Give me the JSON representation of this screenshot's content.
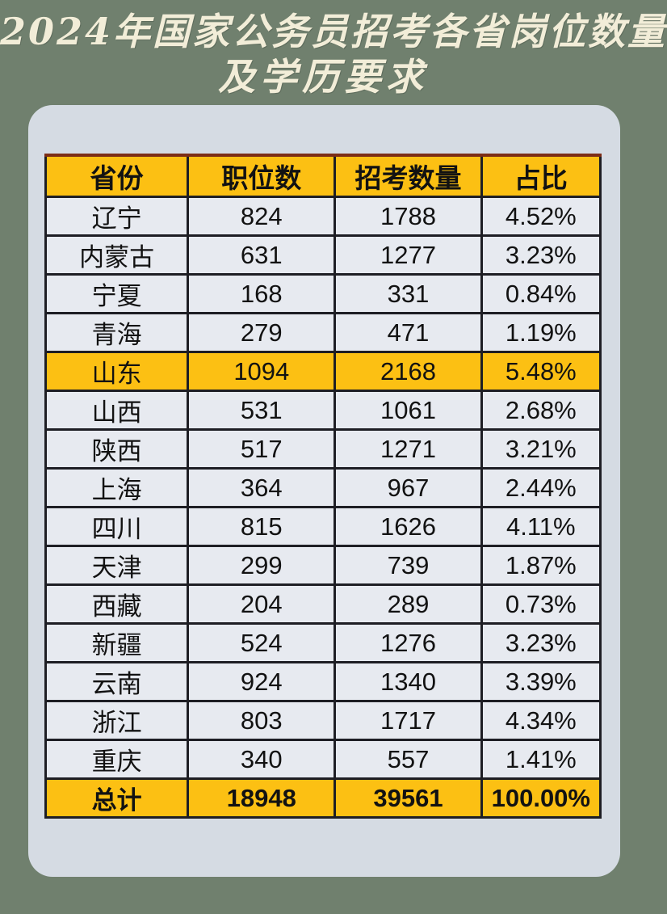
{
  "title": {
    "line1": "2024年国家公务员招考各省岗位数量",
    "line2": "及学历要求"
  },
  "colors": {
    "page_bg": "#70806e",
    "card_bg": "#d5dbe3",
    "accent_yellow": "#fcc013",
    "row_bg": "#e7eaf0",
    "border_color": "#1e1e24",
    "top_border_color": "#7c2d16",
    "title_color": "#f2edd8"
  },
  "table": {
    "header": [
      "省份",
      "职位数",
      "招考数量",
      "占比"
    ],
    "rows": [
      {
        "province": "辽宁",
        "positions": "824",
        "recruits": "1788",
        "share": "4.52%",
        "highlight": false
      },
      {
        "province": "内蒙古",
        "positions": "631",
        "recruits": "1277",
        "share": "3.23%",
        "highlight": false
      },
      {
        "province": "宁夏",
        "positions": "168",
        "recruits": "331",
        "share": "0.84%",
        "highlight": false
      },
      {
        "province": "青海",
        "positions": "279",
        "recruits": "471",
        "share": "1.19%",
        "highlight": false
      },
      {
        "province": "山东",
        "positions": "1094",
        "recruits": "2168",
        "share": "5.48%",
        "highlight": true
      },
      {
        "province": "山西",
        "positions": "531",
        "recruits": "1061",
        "share": "2.68%",
        "highlight": false
      },
      {
        "province": "陕西",
        "positions": "517",
        "recruits": "1271",
        "share": "3.21%",
        "highlight": false
      },
      {
        "province": "上海",
        "positions": "364",
        "recruits": "967",
        "share": "2.44%",
        "highlight": false
      },
      {
        "province": "四川",
        "positions": "815",
        "recruits": "1626",
        "share": "4.11%",
        "highlight": false
      },
      {
        "province": "天津",
        "positions": "299",
        "recruits": "739",
        "share": "1.87%",
        "highlight": false
      },
      {
        "province": "西藏",
        "positions": "204",
        "recruits": "289",
        "share": "0.73%",
        "highlight": false
      },
      {
        "province": "新疆",
        "positions": "524",
        "recruits": "1276",
        "share": "3.23%",
        "highlight": false
      },
      {
        "province": "云南",
        "positions": "924",
        "recruits": "1340",
        "share": "3.39%",
        "highlight": false
      },
      {
        "province": "浙江",
        "positions": "803",
        "recruits": "1717",
        "share": "4.34%",
        "highlight": false
      },
      {
        "province": "重庆",
        "positions": "340",
        "recruits": "557",
        "share": "1.41%",
        "highlight": false
      }
    ],
    "total": {
      "province": "总计",
      "positions": "18948",
      "recruits": "39561",
      "share": "100.00%"
    }
  },
  "chart_data": {
    "type": "table",
    "title": "2024年国家公务员招考各省岗位数量及学历要求",
    "columns": [
      "省份",
      "职位数",
      "招考数量",
      "占比"
    ],
    "rows": [
      [
        "辽宁",
        824,
        1788,
        "4.52%"
      ],
      [
        "内蒙古",
        631,
        1277,
        "3.23%"
      ],
      [
        "宁夏",
        168,
        331,
        "0.84%"
      ],
      [
        "青海",
        279,
        471,
        "1.19%"
      ],
      [
        "山东",
        1094,
        2168,
        "5.48%"
      ],
      [
        "山西",
        531,
        1061,
        "2.68%"
      ],
      [
        "陕西",
        517,
        1271,
        "3.21%"
      ],
      [
        "上海",
        364,
        967,
        "2.44%"
      ],
      [
        "四川",
        815,
        1626,
        "4.11%"
      ],
      [
        "天津",
        299,
        739,
        "1.87%"
      ],
      [
        "西藏",
        204,
        289,
        "0.73%"
      ],
      [
        "新疆",
        524,
        1276,
        "3.23%"
      ],
      [
        "云南",
        924,
        1340,
        "3.39%"
      ],
      [
        "浙江",
        803,
        1717,
        "4.34%"
      ],
      [
        "重庆",
        340,
        557,
        "1.41%"
      ]
    ],
    "total_row": [
      "总计",
      18948,
      39561,
      "100.00%"
    ],
    "highlighted_row": "山东"
  }
}
